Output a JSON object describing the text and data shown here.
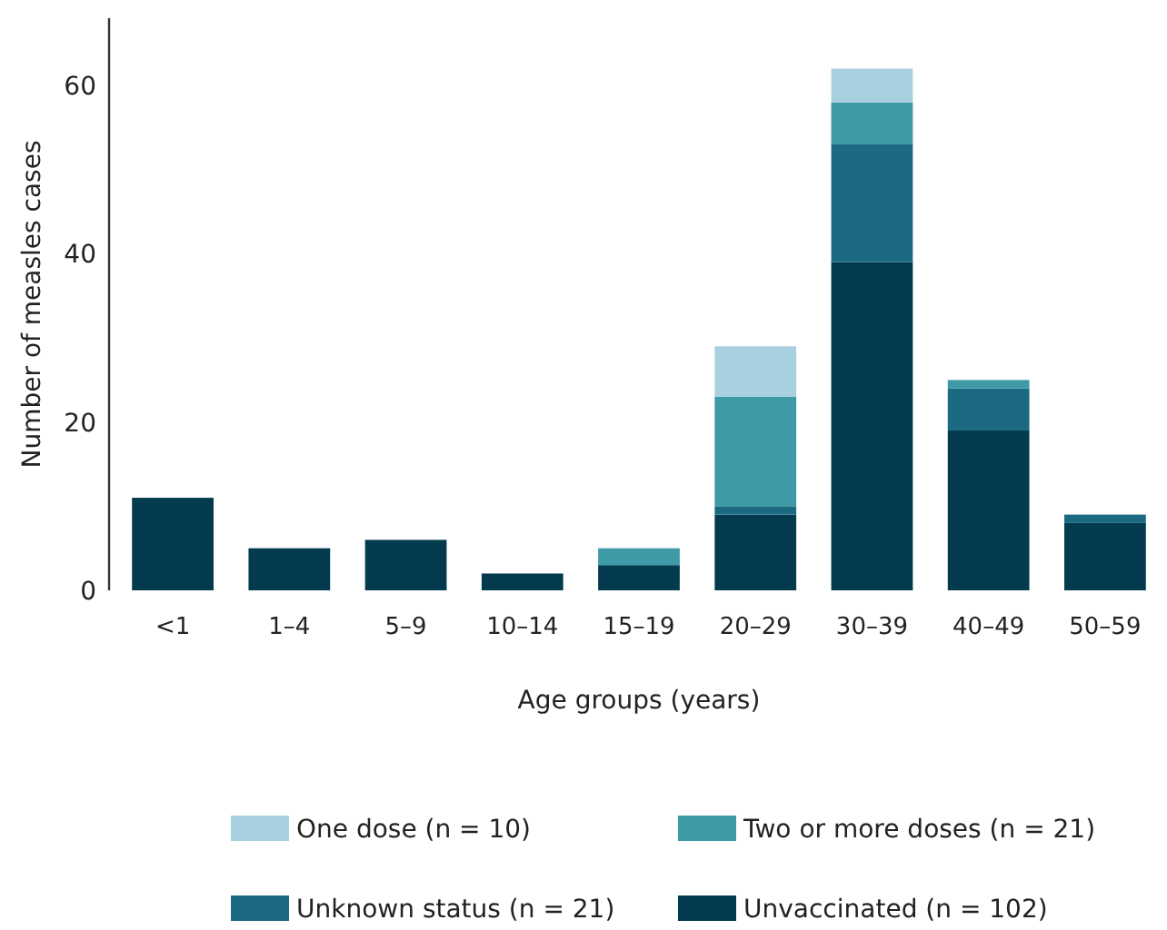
{
  "chart_data": {
    "type": "bar",
    "stacked": true,
    "xlabel": "Age groups (years)",
    "ylabel": "Number of measles cases",
    "categories": [
      "<1",
      "1–4",
      "5–9",
      "10–14",
      "15–19",
      "20–29",
      "30–39",
      "40–49",
      "50–59"
    ],
    "series": [
      {
        "name": "Unvaccinated (n = 102)",
        "color": "#033a4e",
        "values": [
          11,
          5,
          6,
          2,
          3,
          9,
          39,
          19,
          8
        ]
      },
      {
        "name": "Unknown status (n = 21)",
        "color": "#1b6a82",
        "values": [
          0,
          0,
          0,
          0,
          0,
          1,
          14,
          5,
          1
        ]
      },
      {
        "name": "Two or more doses (n = 21)",
        "color": "#3d9aa6",
        "values": [
          0,
          0,
          0,
          0,
          2,
          13,
          5,
          1,
          0
        ]
      },
      {
        "name": "One dose (n = 10)",
        "color": "#a9d0de",
        "values": [
          0,
          0,
          0,
          0,
          0,
          6,
          4,
          0,
          0
        ]
      }
    ],
    "ylim": [
      0,
      68
    ],
    "yticks": [
      0,
      20,
      40,
      60
    ],
    "grid": false,
    "legend": "bottom"
  }
}
